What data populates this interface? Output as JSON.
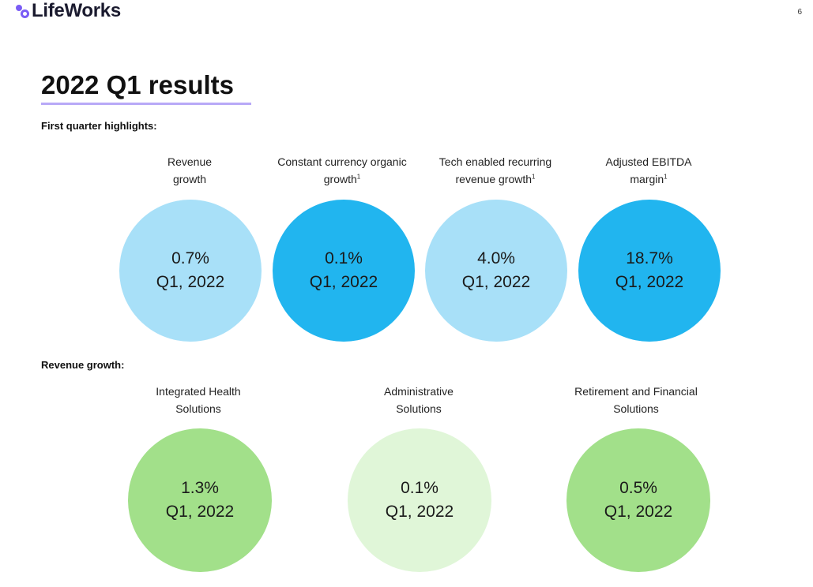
{
  "header": {
    "logo_text": "LifeWorks",
    "page_number": "6"
  },
  "title": "2022 Q1 results",
  "section1": {
    "label": "First quarter highlights:",
    "metrics": [
      {
        "caption_line1": "Revenue",
        "caption_line2": "growth",
        "footnote": "",
        "value": "0.7%",
        "period": "Q1, 2022",
        "color": "#a8e0f8"
      },
      {
        "caption_line1": "Constant currency organic",
        "caption_line2": "growth",
        "footnote": "1",
        "value": "0.1%",
        "period": "Q1, 2022",
        "color": "#21b5ef"
      },
      {
        "caption_line1": "Tech enabled recurring",
        "caption_line2": "revenue growth",
        "footnote": "1",
        "value": "4.0%",
        "period": "Q1, 2022",
        "color": "#a8e0f8"
      },
      {
        "caption_line1": "Adjusted EBITDA",
        "caption_line2": "margin",
        "footnote": "1",
        "value": "18.7%",
        "period": "Q1, 2022",
        "color": "#21b5ef"
      }
    ]
  },
  "section2": {
    "label": "Revenue growth:",
    "metrics": [
      {
        "caption_line1": "Integrated Health",
        "caption_line2": "Solutions",
        "value": "1.3%",
        "period": "Q1, 2022",
        "color": "#a2e08a"
      },
      {
        "caption_line1": "Administrative",
        "caption_line2": "Solutions",
        "value": "0.1%",
        "period": "Q1, 2022",
        "color": "#e0f6d8"
      },
      {
        "caption_line1": "Retirement and Financial",
        "caption_line2": "Solutions",
        "value": "0.5%",
        "period": "Q1, 2022",
        "color": "#a2e08a"
      }
    ]
  },
  "colors": {
    "brand_purple": "#7a5cf5",
    "underline": "#b8a9f7"
  }
}
